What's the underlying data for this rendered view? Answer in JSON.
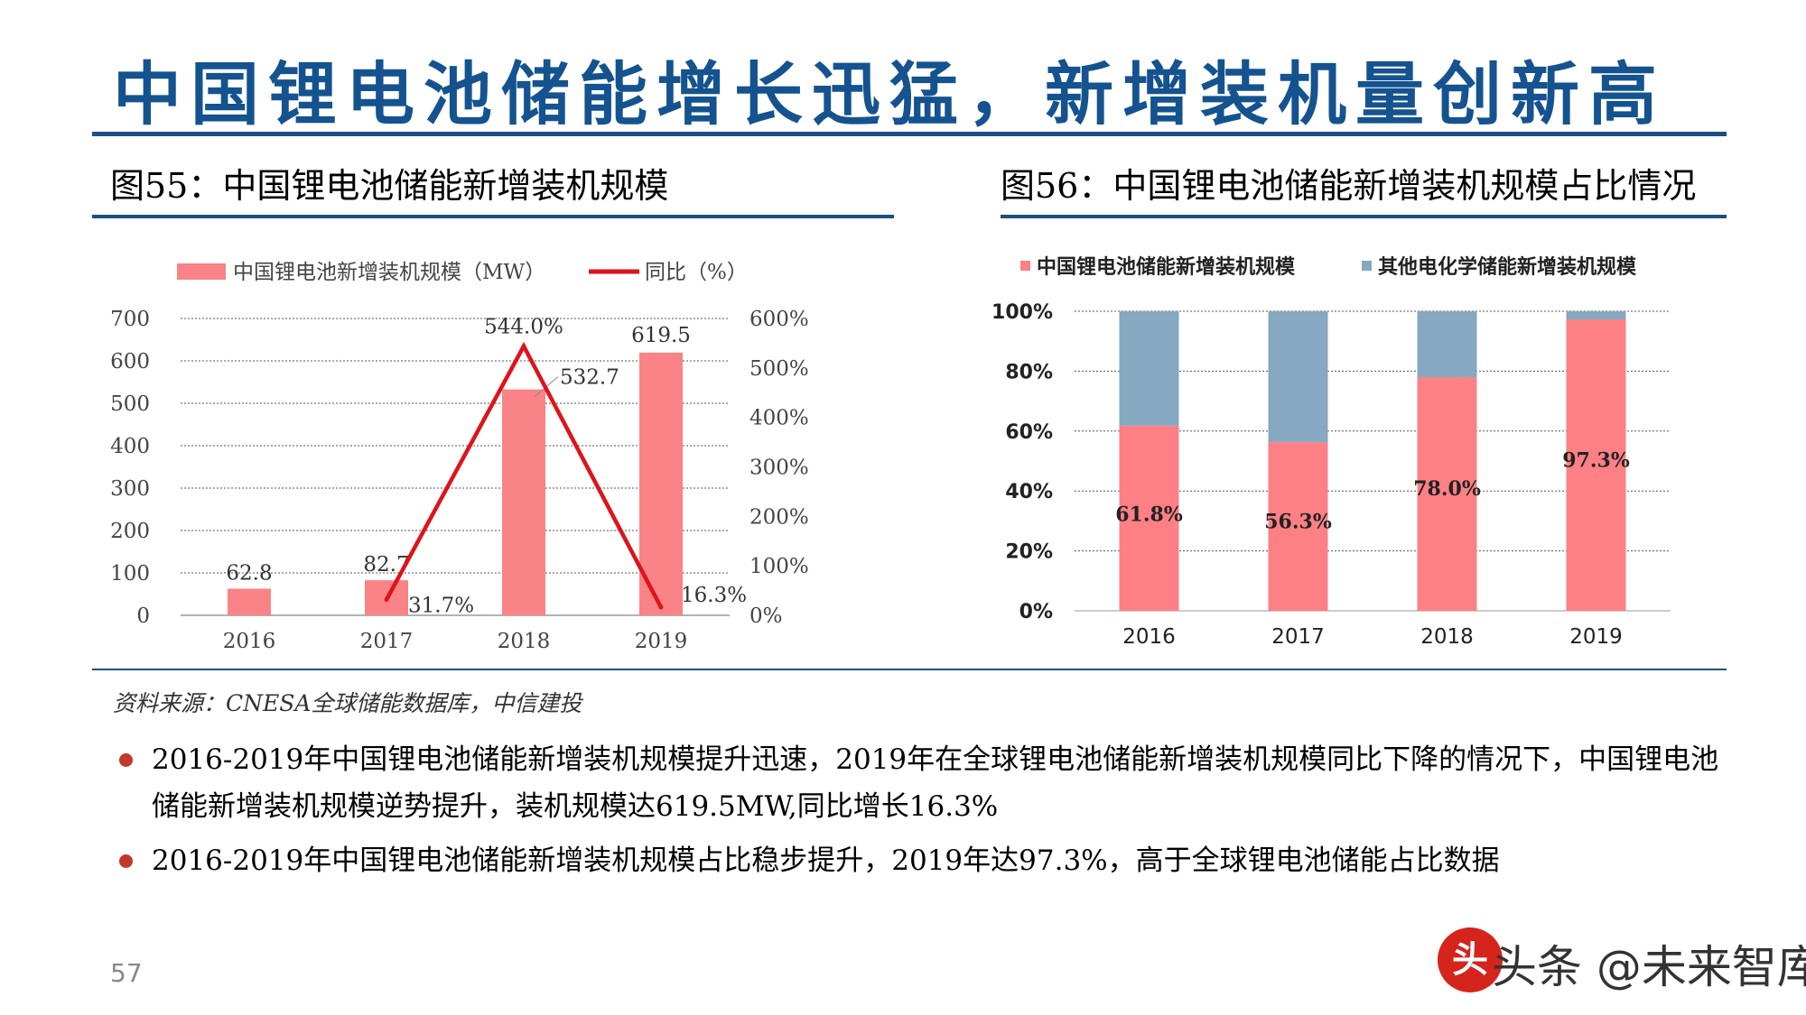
{
  "page_title": "中国锂电池储能增长迅猛，新增装机量创新高",
  "figures": {
    "left_title": "图55：中国锂电池储能新增装机规模",
    "right_title": "图56：中国锂电池储能新增装机规模占比情况"
  },
  "chart_data": [
    {
      "type": "bar",
      "categories": [
        "2016",
        "2017",
        "2018",
        "2019"
      ],
      "series": [
        {
          "name": "中国锂电池新增装机规模（MW）",
          "values": [
            62.8,
            82.7,
            532.7,
            619.5
          ],
          "labels": [
            "62.8",
            "82.7",
            "532.7",
            "619.5"
          ],
          "axis": "left",
          "color": "#f98386"
        },
        {
          "name": "同比（%）",
          "type": "line",
          "values": [
            null,
            31.7,
            544.0,
            16.3
          ],
          "labels": [
            "",
            "31.7%",
            "544.0%",
            "16.3%"
          ],
          "axis": "right",
          "color": "#e0121a"
        }
      ],
      "y_ticks": [
        "0",
        "100",
        "200",
        "300",
        "400",
        "500",
        "600",
        "700"
      ],
      "y2_ticks": [
        "0%",
        "100%",
        "200%",
        "300%",
        "400%",
        "500%",
        "600%"
      ],
      "ylim": [
        0,
        700
      ],
      "y2lim": [
        0,
        600
      ],
      "grid": true,
      "legend": "top"
    },
    {
      "type": "bar",
      "stacked": true,
      "categories": [
        "2016",
        "2017",
        "2018",
        "2019"
      ],
      "series": [
        {
          "name": "中国锂电池储能新增装机规模",
          "values": [
            61.8,
            56.3,
            78.0,
            97.3
          ],
          "labels": [
            "61.8%",
            "56.3%",
            "78.0%",
            "97.3%"
          ],
          "color": "#fd8085"
        },
        {
          "name": "其他电化学储能新增装机规模",
          "values": [
            38.2,
            43.7,
            22.0,
            2.7
          ],
          "color": "#86a8c1"
        }
      ],
      "y_ticks": [
        "0%",
        "20%",
        "40%",
        "60%",
        "80%",
        "100%"
      ],
      "ylim": [
        0,
        100
      ],
      "grid": true,
      "legend": "top"
    }
  ],
  "source": "资料来源：CNESA全球储能数据库，中信建投",
  "bullets": [
    "2016-2019年中国锂电池储能新增装机规模提升迅速，2019年在全球锂电池储能新增装机规模同比下降的情况下，中国锂电池储能新增装机规模逆势提升，装机规模达619.5MW,同比增长16.3%",
    "2016-2019年中国锂电池储能新增装机规模占比稳步提升，2019年达97.3%，高于全球锂电池储能占比数据"
  ],
  "page_number": "57",
  "watermark": {
    "logo": "头",
    "text": "头条 @未来智库"
  }
}
